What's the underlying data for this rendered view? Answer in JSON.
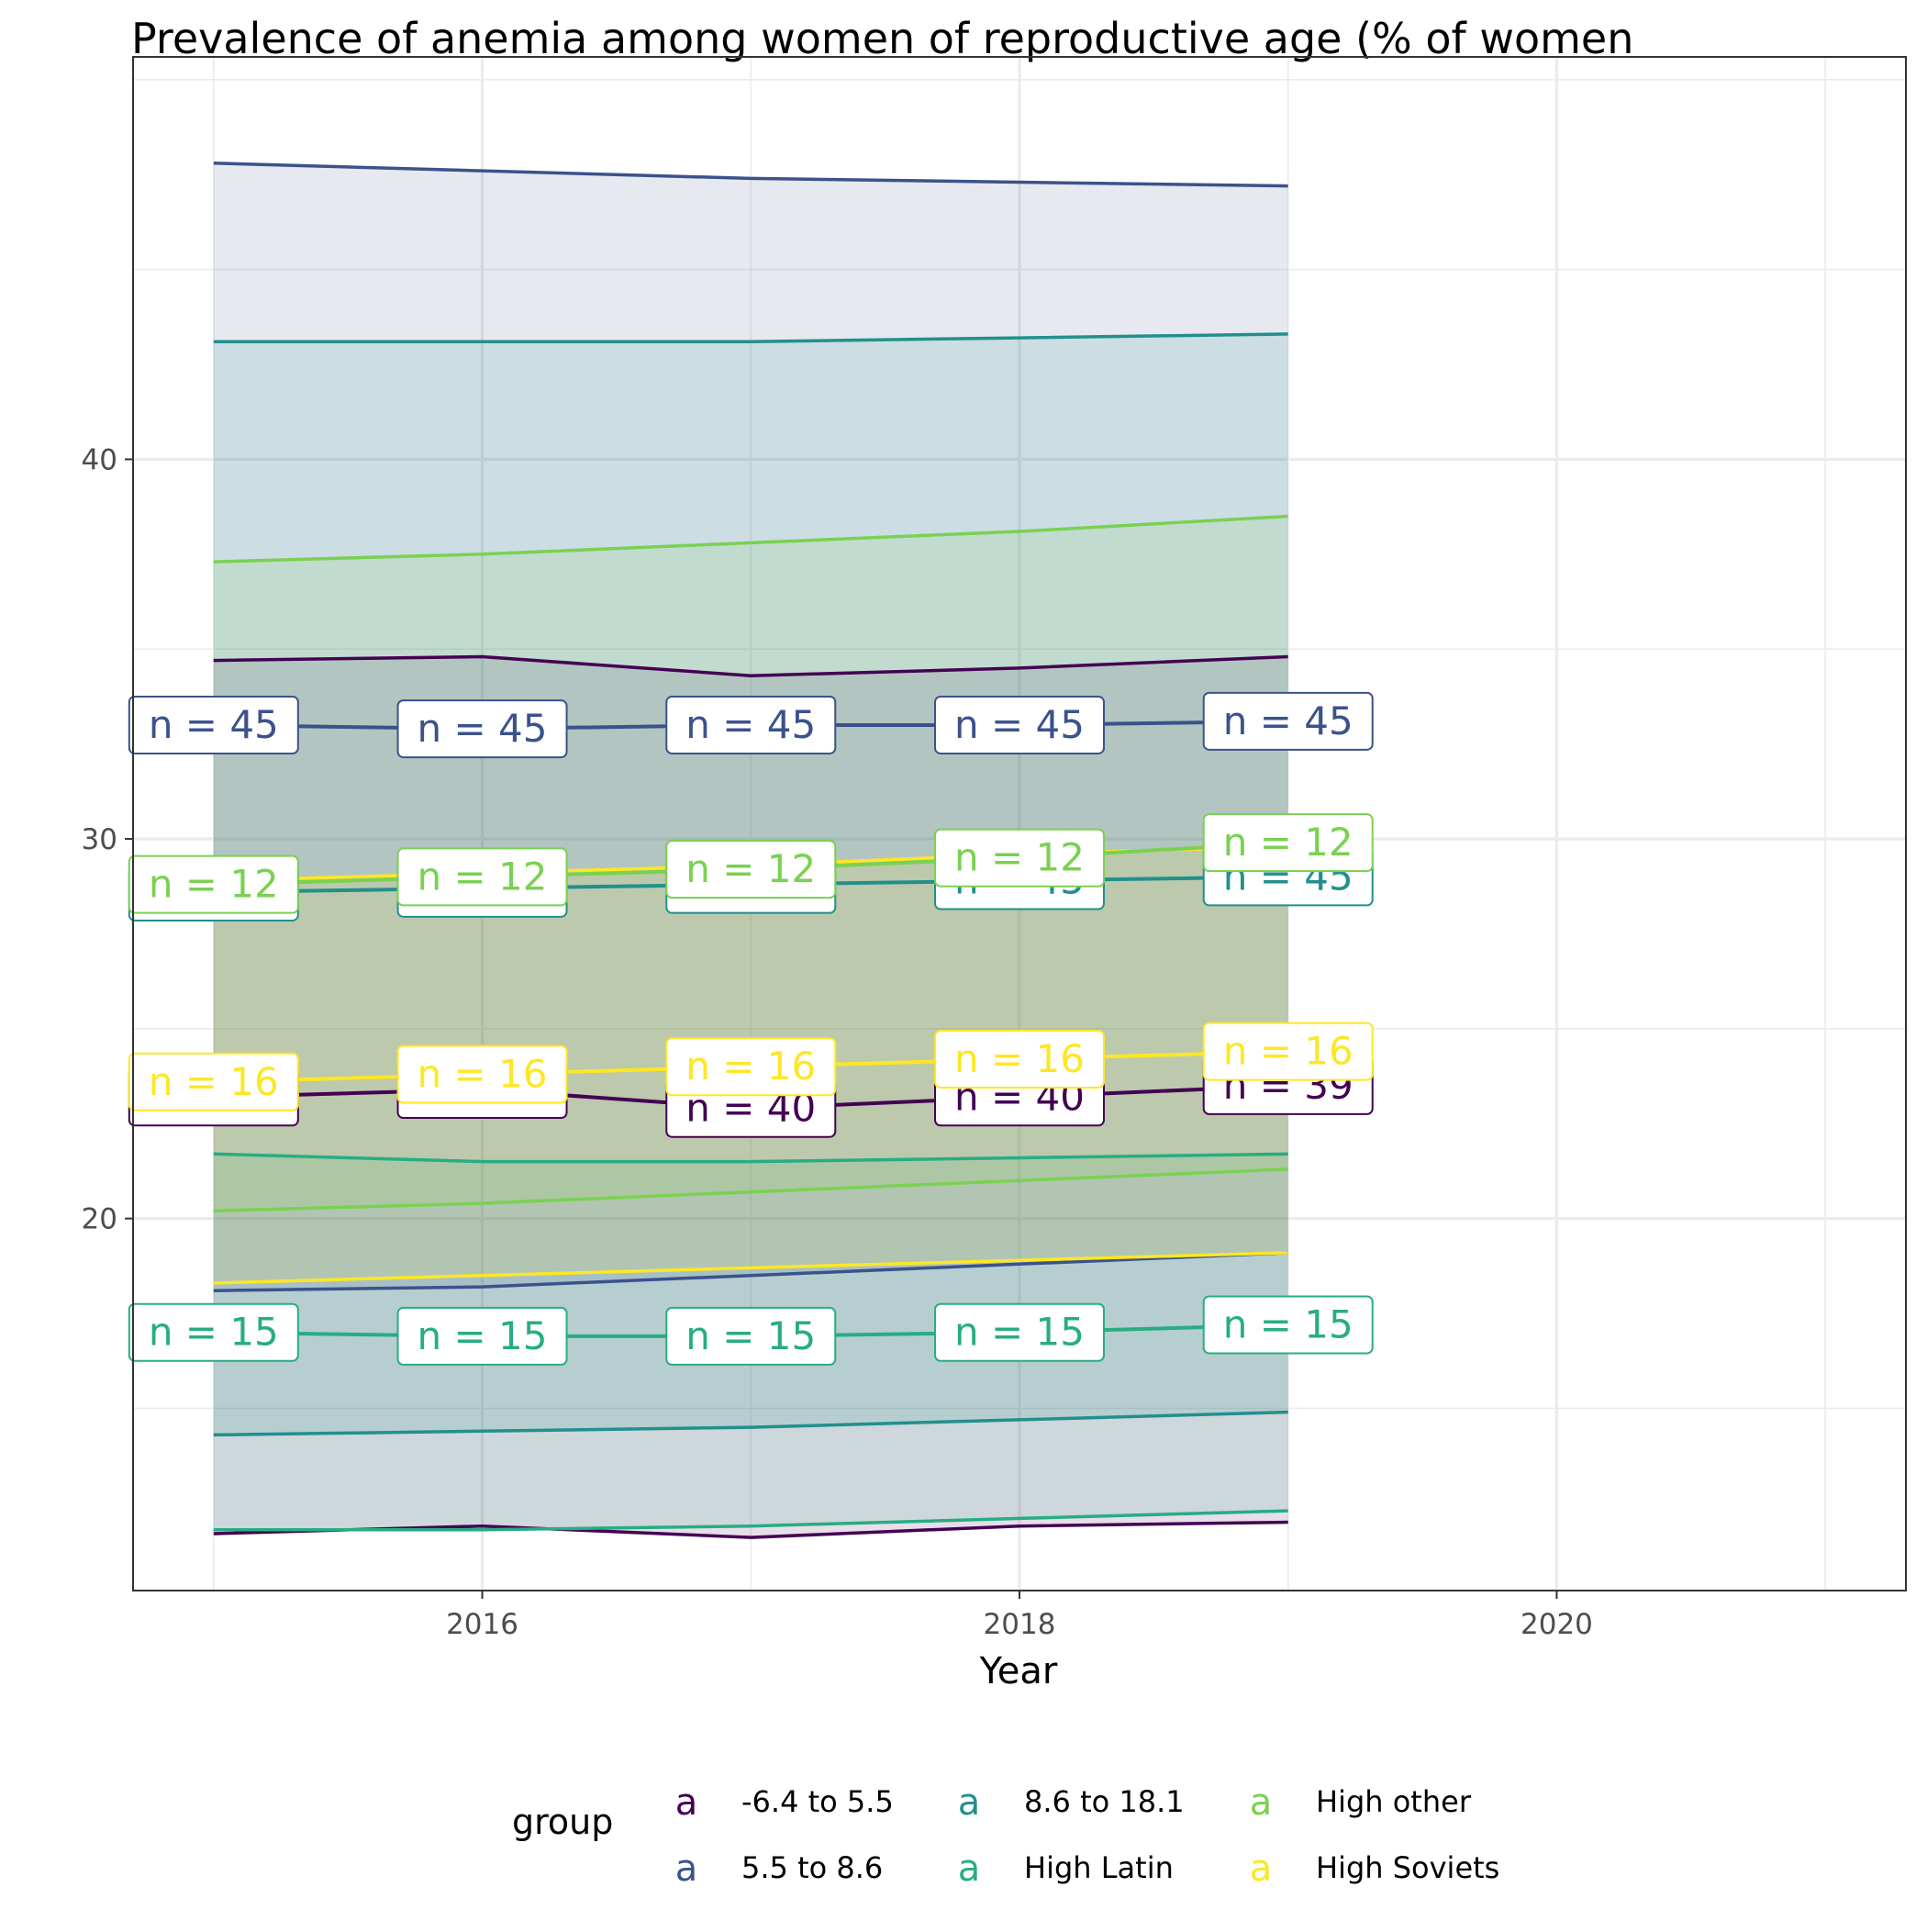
{
  "chart_data": {
    "type": "line",
    "title": "Prevalence of anemia among women of reproductive age (% of women",
    "xlabel": "Year",
    "ylabel": "",
    "x": [
      2015,
      2016,
      2017,
      2018,
      2019
    ],
    "xlim": [
      2014.7,
      2021.3
    ],
    "ylim": [
      10.2,
      50.6
    ],
    "x_ticks": [
      2016,
      2018,
      2020
    ],
    "y_ticks": [
      20,
      30,
      40
    ],
    "grid": true,
    "legend": {
      "title": "group",
      "position": "bottom",
      "key_glyph": "a",
      "entries": [
        "-6.4 to 5.5",
        "5.5 to 8.6",
        "8.6 to 18.1",
        "High Latin",
        "High other",
        "High Soviets"
      ]
    },
    "series": [
      {
        "name": "-6.4 to 5.5",
        "color": "#440154",
        "values": [
          23.2,
          23.4,
          22.9,
          23.2,
          23.5
        ],
        "lower": [
          11.7,
          11.9,
          11.6,
          11.9,
          12.0
        ],
        "upper": [
          34.7,
          34.8,
          34.3,
          34.5,
          34.8
        ],
        "labels": [
          "n = 40",
          "n = 40",
          "n = 40",
          "n = 40",
          "n = 39"
        ]
      },
      {
        "name": "5.5 to 8.6",
        "color": "#3B528B",
        "values": [
          33.0,
          32.9,
          33.0,
          33.0,
          33.1
        ],
        "lower": [
          18.1,
          18.2,
          18.5,
          18.8,
          19.1
        ],
        "upper": [
          47.8,
          47.6,
          47.4,
          47.3,
          47.2
        ],
        "labels": [
          "n = 45",
          "n = 45",
          "n = 45",
          "n = 45",
          "n = 45"
        ]
      },
      {
        "name": "8.6 to 18.1",
        "color": "#21908C",
        "values": [
          28.6,
          28.7,
          28.8,
          28.9,
          29.0
        ],
        "lower": [
          14.3,
          14.4,
          14.5,
          14.7,
          14.9
        ],
        "upper": [
          43.1,
          43.1,
          43.1,
          43.2,
          43.3
        ],
        "labels": [
          "n = 45",
          "n = 45",
          "n = 45",
          "n = 45",
          "n = 45"
        ]
      },
      {
        "name": "High Latin",
        "color": "#27AD81",
        "values": [
          17.0,
          16.9,
          16.9,
          17.0,
          17.2
        ],
        "lower": [
          11.8,
          11.8,
          11.9,
          12.1,
          12.3
        ],
        "upper": [
          21.7,
          21.5,
          21.5,
          21.6,
          21.7
        ],
        "labels": [
          "n = 15",
          "n = 15",
          "n = 15",
          "n = 15",
          "n = 15"
        ]
      },
      {
        "name": "High other",
        "color": "#7AD151",
        "values": [
          28.8,
          29.0,
          29.2,
          29.5,
          29.9
        ],
        "lower": [
          20.2,
          20.4,
          20.7,
          21.0,
          21.3
        ],
        "upper": [
          37.3,
          37.5,
          37.8,
          38.1,
          38.5
        ],
        "labels": [
          "n = 12",
          "n = 12",
          "n = 12",
          "n = 12",
          "n = 12"
        ]
      },
      {
        "name": "High Soviets",
        "color": "#FDE725",
        "values": [
          23.6,
          23.8,
          24.0,
          24.2,
          24.4
        ],
        "lower": [
          18.3,
          18.5,
          18.7,
          18.9,
          19.1
        ],
        "upper": [
          28.9,
          29.1,
          29.3,
          29.6,
          29.8
        ],
        "labels": [
          "n = 16",
          "n = 16",
          "n = 16",
          "n = 16",
          "n = 16"
        ]
      }
    ]
  }
}
